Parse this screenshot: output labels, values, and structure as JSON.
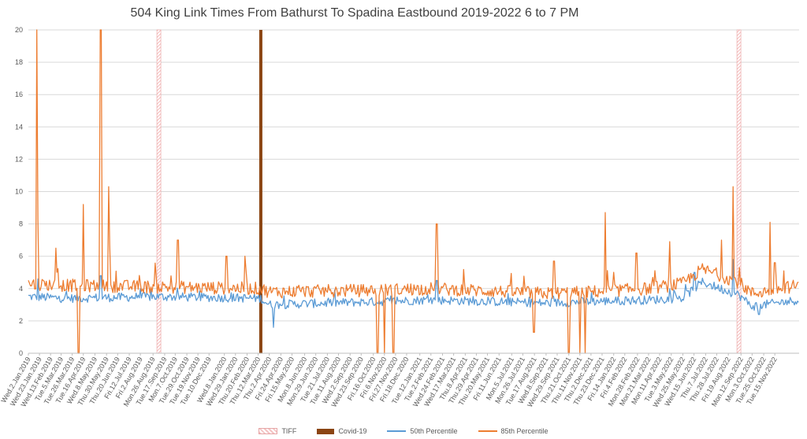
{
  "chart_data": {
    "type": "line",
    "title": "504 King Link Times From Bathurst To Spadina Eastbound 2019-2022 6 to 7 PM",
    "ylim": [
      0,
      20
    ],
    "yticks": [
      0,
      2,
      4,
      6,
      8,
      10,
      12,
      14,
      16,
      18,
      20
    ],
    "x_tick_labels": [
      "Wed.2.Jan.2019",
      "Wed.23.Jan.2019",
      "Wed.13.Feb.2019",
      "Tue.5.Mar.2019",
      "Tue.26.Mar.2019",
      "Tue.16.Apr.2019",
      "Wed.8.May.2019",
      "Thu.30.May.2019",
      "Thu.20.Jun.2019",
      "Fri.12.Jul.2019",
      "Fri.2.Aug.2019",
      "Mon.26.Aug.2019",
      "Tue.17.Sep.2019",
      "Mon.7.Oct.2019",
      "Tue.29.Oct.2019",
      "Tue.19.Nov.2019",
      "Tue.10.Dec.2019",
      "Wed.8.Jan.2020",
      "Wed.29.Jan.2020",
      "Thu.20.Feb.2020",
      "Thu.12.Mar.2020",
      "Thu.2.Apr.2020",
      "Fri.24.Apr.2020",
      "Fri.15.May.2020",
      "Mon.8.Jun.2020",
      "Mon.29.Jun.2020",
      "Tue.21.Jul.2020",
      "Tue.11.Aug.2020",
      "Wed.2.Sep.2020",
      "Wed.23.Sep.2020",
      "Fri.16.Oct.2020",
      "Fri.6.Nov.2020",
      "Fri.27.Nov.2020",
      "Fri.18.Dec.2020",
      "Tue.12.Jan.2021",
      "Tue.2.Feb.2021",
      "Wed.24.Feb.2021",
      "Wed.17.Mar.2021",
      "Thu.8.Apr.2021",
      "Thu.29.Apr.2021",
      "Thu.20.May.2021",
      "Fri.11.Jun.2021",
      "Mon.5.Jul.2021",
      "Mon.26.Jul.2021",
      "Tue.17.Aug.2021",
      "Wed.8.Sep.2021",
      "Wed.29.Sep.2021",
      "Thu.21.Oct.2021",
      "Thu.11.Nov.2021",
      "Thu.2.Dec.2021",
      "Thu.23.Dec.2021",
      "Fri.14.Jan.2022",
      "Fri.4.Feb.2022",
      "Mon.28.Feb.2022",
      "Mon.21.Mar.2022",
      "Mon.11.Apr.2022",
      "Tue.3.May.2022",
      "Wed.25.May.2022",
      "Wed.15.Jun.2022",
      "Thu.7.Jul.2022",
      "Thu.28.Jul.2022",
      "Fri.19.Aug.2022",
      "Mon.12.Sep.2022",
      "Mon.3.Oct.2022",
      "Tue.25.Oct.2022",
      "Tue.15.Nov.2022"
    ],
    "bars": [
      {
        "name": "TIFF",
        "at": [
          "Fri.6.Sep.2019",
          "Thu.8.Sep.2022"
        ],
        "value": 20,
        "color": "#f4b6b6",
        "style": "hatched"
      },
      {
        "name": "Covid-19",
        "at": [
          "Tue.17.Mar.2020"
        ],
        "value": 20,
        "color": "#8b4513",
        "style": "solid"
      }
    ],
    "series": [
      {
        "name": "50th Percentile",
        "color": "#5b9bd5",
        "baseline": [
          [
            "Wed.2.Jan.2019",
            3.5
          ],
          [
            "Thu.14.Mar.2019",
            3.4
          ],
          [
            "Fri.6.Sep.2019",
            3.5
          ],
          [
            "Tue.17.Mar.2020",
            3.4
          ],
          [
            "Thu.2.Apr.2020",
            3.0
          ],
          [
            "Fri.30.Oct.2020",
            3.2
          ],
          [
            "Tue.2.Feb.2021",
            3.3
          ],
          [
            "Wed.8.Sep.2021",
            3.1
          ],
          [
            "Thu.2.Dec.2021",
            3.2
          ],
          [
            "Mon.21.Mar.2022",
            3.3
          ],
          [
            "Tue.24.May.2022",
            3.4
          ],
          [
            "Fri.1.Jul.2022",
            4.4
          ],
          [
            "Thu.8.Sep.2022",
            3.6
          ],
          [
            "Mon.3.Oct.2022",
            2.9
          ],
          [
            "Sat.31.Dec.2022",
            3.3
          ]
        ],
        "spikes": [
          [
            "Sun.20.Jan.2019",
            4.6
          ],
          [
            "Sun.19.May.2019",
            4.8
          ],
          [
            "Fri.10.Apr.2020",
            1.6
          ],
          [
            "Sat.13.Feb.2021",
            4.5
          ],
          [
            "Thu.16.Jun.2022",
            5.0
          ],
          [
            "Sun.28.Aug.2022",
            5.8
          ],
          [
            "Sun.16.Oct.2022",
            2.4
          ]
        ]
      },
      {
        "name": "85th Percentile",
        "color": "#ed7d31",
        "baseline": [
          [
            "Wed.2.Jan.2019",
            4.3
          ],
          [
            "Thu.14.Mar.2019",
            4.2
          ],
          [
            "Fri.6.Sep.2019",
            4.1
          ],
          [
            "Tue.17.Mar.2020",
            4.0
          ],
          [
            "Thu.2.Apr.2020",
            3.8
          ],
          [
            "Fri.30.Oct.2020",
            3.9
          ],
          [
            "Tue.2.Feb.2021",
            4.0
          ],
          [
            "Wed.8.Sep.2021",
            3.7
          ],
          [
            "Thu.2.Dec.2021",
            3.8
          ],
          [
            "Mon.21.Mar.2022",
            4.0
          ],
          [
            "Tue.24.May.2022",
            4.3
          ],
          [
            "Fri.1.Jul.2022",
            5.2
          ],
          [
            "Thu.8.Sep.2022",
            4.4
          ],
          [
            "Mon.3.Oct.2022",
            3.7
          ],
          [
            "Sat.31.Dec.2022",
            4.2
          ]
        ],
        "spikes": [
          [
            "Fri.18.Jan.2019",
            20
          ],
          [
            "Sun.20.Jan.2019",
            8.3
          ],
          [
            "Sat.23.Feb.2019",
            6.5
          ],
          [
            "Sun.7.Apr.2019",
            0
          ],
          [
            "Tue.16.Apr.2019",
            9.2
          ],
          [
            "Sun.19.May.2019",
            20
          ],
          [
            "Mon.3.Jun.2019",
            10.3
          ],
          [
            "Wed.5.Jun.2019",
            6.7
          ],
          [
            "Sat.12.Oct.2019",
            7.0
          ],
          [
            "Sun.12.Jan.2020",
            6.0
          ],
          [
            "Sun.16.Feb.2020",
            6.0
          ],
          [
            "Sat.24.Oct.2020",
            0
          ],
          [
            "Fri.6.Nov.2020",
            0
          ],
          [
            "Mon.23.Nov.2020",
            0
          ],
          [
            "Sat.13.Feb.2021",
            8.0
          ],
          [
            "Mon.16.Aug.2021",
            1.3
          ],
          [
            "Thu.23.Sep.2021",
            5.7
          ],
          [
            "Thu.21.Oct.2021",
            0
          ],
          [
            "Thu.11.Nov.2021",
            0
          ],
          [
            "Sun.21.Nov.2021",
            0
          ],
          [
            "Wed.29.Dec.2021",
            8.7
          ],
          [
            "Sat.26.Feb.2022",
            6.2
          ],
          [
            "Sat.30.Apr.2022",
            6.9
          ],
          [
            "Sat.6.Aug.2022",
            7.0
          ],
          [
            "Sun.28.Aug.2022",
            10.3
          ],
          [
            "Sun.6.Nov.2022",
            8.1
          ],
          [
            "Tue.15.Nov.2022",
            5.6
          ]
        ]
      }
    ],
    "legend_position": "bottom",
    "grid": true
  },
  "legend": {
    "tiff": "TIFF",
    "covid": "Covid-19",
    "p50": "50th Percentile",
    "p85": "85th Percentile"
  }
}
